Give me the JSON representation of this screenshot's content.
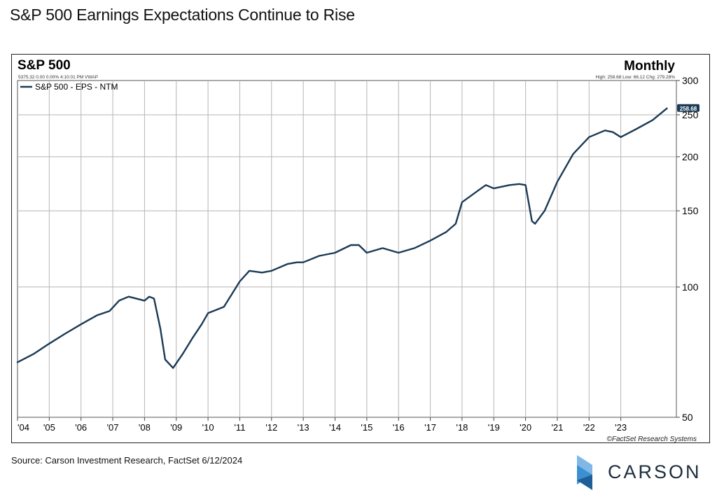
{
  "headline": "S&P 500 Earnings Expectations Continue to Rise",
  "source": "Source: Carson Investment Research, FactSet 6/12/2024",
  "brand": {
    "name": "CARSON",
    "icon": "carson-logo-icon",
    "colors": [
      "#3c8fd0",
      "#1f5f98",
      "#7fb8e6"
    ]
  },
  "chart_data": {
    "type": "line",
    "title": "S&P 500",
    "frequency": "Monthly",
    "info_left": "5375.32 0.00 0.00% 4:10:01 PM VWAP",
    "info_right": "High: 258.68 Low: 66.12 Chg: 279.28%",
    "credit": "©FactSet Research Systems",
    "last_value_label": "258.68",
    "line_color": "#1b3a55",
    "y_scale": "log",
    "ylim": [
      50,
      300
    ],
    "y_ticks": [
      50,
      100,
      150,
      200,
      250,
      300
    ],
    "y_tick_labels": [
      "50",
      "100",
      "150",
      "200",
      "250",
      "300"
    ],
    "grid": true,
    "legend_position": "top-left",
    "x_tick_labels": [
      "'04",
      "'05",
      "'06",
      "'07",
      "'08",
      "'09",
      "'10",
      "'11",
      "'12",
      "'13",
      "'14",
      "'15",
      "'16",
      "'17",
      "'18",
      "'19",
      "'20",
      "'21",
      "'22",
      "'23"
    ],
    "series": [
      {
        "name": "S&P 500 - EPS - NTM",
        "points": [
          [
            2004.0,
            67
          ],
          [
            2004.5,
            70
          ],
          [
            2005.0,
            74
          ],
          [
            2005.5,
            78
          ],
          [
            2006.0,
            82
          ],
          [
            2006.5,
            86
          ],
          [
            2006.9,
            88
          ],
          [
            2007.2,
            93
          ],
          [
            2007.5,
            95
          ],
          [
            2008.0,
            93
          ],
          [
            2008.15,
            95
          ],
          [
            2008.3,
            94
          ],
          [
            2008.5,
            80
          ],
          [
            2008.65,
            68
          ],
          [
            2008.9,
            65
          ],
          [
            2009.2,
            70
          ],
          [
            2009.5,
            76
          ],
          [
            2009.8,
            82
          ],
          [
            2010.0,
            87
          ],
          [
            2010.5,
            90
          ],
          [
            2011.0,
            103
          ],
          [
            2011.3,
            109
          ],
          [
            2011.7,
            108
          ],
          [
            2012.0,
            109
          ],
          [
            2012.5,
            113
          ],
          [
            2012.8,
            114
          ],
          [
            2013.0,
            114
          ],
          [
            2013.5,
            118
          ],
          [
            2014.0,
            120
          ],
          [
            2014.5,
            125
          ],
          [
            2014.75,
            125
          ],
          [
            2015.0,
            120
          ],
          [
            2015.5,
            123
          ],
          [
            2016.0,
            120
          ],
          [
            2016.5,
            123
          ],
          [
            2017.0,
            128
          ],
          [
            2017.5,
            134
          ],
          [
            2017.8,
            140
          ],
          [
            2018.0,
            157
          ],
          [
            2018.5,
            167
          ],
          [
            2018.75,
            172
          ],
          [
            2019.0,
            169
          ],
          [
            2019.5,
            172
          ],
          [
            2019.8,
            173
          ],
          [
            2020.0,
            172
          ],
          [
            2020.2,
            142
          ],
          [
            2020.3,
            140
          ],
          [
            2020.6,
            150
          ],
          [
            2021.0,
            175
          ],
          [
            2021.5,
            203
          ],
          [
            2022.0,
            222
          ],
          [
            2022.5,
            230
          ],
          [
            2022.75,
            228
          ],
          [
            2023.0,
            222
          ],
          [
            2023.5,
            232
          ],
          [
            2024.0,
            243
          ],
          [
            2024.45,
            258.68
          ]
        ]
      }
    ]
  }
}
